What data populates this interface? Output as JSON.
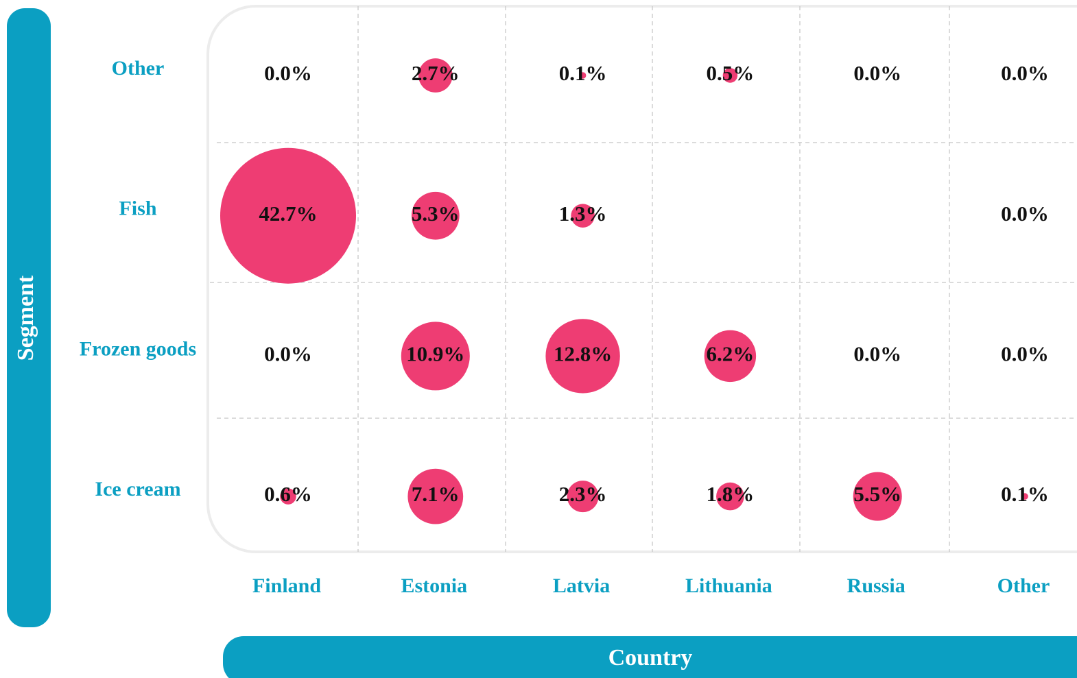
{
  "chart_data": {
    "type": "bubble_matrix",
    "x_label": "Country",
    "y_label": "Segment",
    "categories": [
      "Finland",
      "Estonia",
      "Latvia",
      "Lithuania",
      "Russia",
      "Other"
    ],
    "color": "#ee3d73",
    "series": [
      {
        "name": "Other",
        "values": [
          0,
          2.7,
          0.1,
          0.5,
          0,
          0
        ],
        "value_labels": [
          "0.0%",
          "2.7%",
          "0.1%",
          "0.5%",
          "0.0%",
          "0.0%"
        ]
      },
      {
        "name": "Fish",
        "values": [
          42.7,
          5.3,
          1.3,
          null,
          null,
          0
        ],
        "value_labels": [
          "42.7%",
          "5.3%",
          "1.3%",
          null,
          null,
          "0.0%"
        ]
      },
      {
        "name": "Frozen goods",
        "values": [
          0,
          10.9,
          12.8,
          6.2,
          0,
          0
        ],
        "value_labels": [
          "0.0%",
          "10.9%",
          "12.8%",
          "6.2%",
          "0.0%",
          "0.0%"
        ]
      },
      {
        "name": "Ice cream",
        "values": [
          0.6,
          7.1,
          2.3,
          1.8,
          5.5,
          0.1
        ],
        "value_labels": [
          "0.6%",
          "7.1%",
          "2.3%",
          "1.8%",
          "5.5%",
          "0.1%"
        ]
      }
    ]
  }
}
